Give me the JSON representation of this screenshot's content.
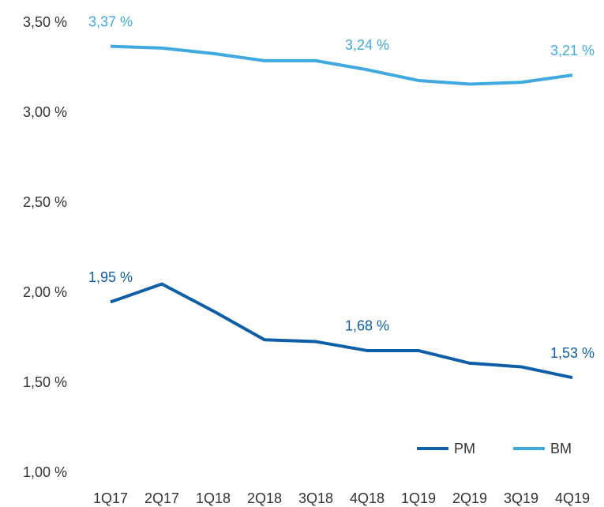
{
  "chart_data": {
    "type": "line",
    "categories": [
      "1Q17",
      "2Q17",
      "1Q18",
      "2Q18",
      "3Q18",
      "4Q18",
      "1Q19",
      "2Q19",
      "3Q19",
      "4Q19"
    ],
    "series": [
      {
        "name": "PM",
        "color": "#0f5ea8",
        "values": [
          1.95,
          2.05,
          1.9,
          1.74,
          1.73,
          1.68,
          1.68,
          1.61,
          1.59,
          1.53
        ],
        "value_labels": [
          "1,95 %",
          null,
          null,
          null,
          null,
          "1,68 %",
          null,
          null,
          null,
          "1,53 %"
        ]
      },
      {
        "name": "BM",
        "color": "#3fa9e0",
        "values": [
          3.37,
          3.36,
          3.33,
          3.29,
          3.29,
          3.24,
          3.18,
          3.16,
          3.17,
          3.21
        ],
        "value_labels": [
          "3,37 %",
          null,
          null,
          null,
          null,
          "3,24 %",
          null,
          null,
          null,
          "3,21 %"
        ]
      }
    ],
    "ylim": [
      1.0,
      3.5
    ],
    "yticks": [
      {
        "value": 1.0,
        "label": "1,00 %"
      },
      {
        "value": 1.5,
        "label": "1,50 %"
      },
      {
        "value": 2.0,
        "label": "2,00 %"
      },
      {
        "value": 2.5,
        "label": "2,50 %"
      },
      {
        "value": 3.0,
        "label": "3,00 %"
      },
      {
        "value": 3.5,
        "label": "3,50 %"
      }
    ],
    "grid": false,
    "legend": "lower right"
  }
}
